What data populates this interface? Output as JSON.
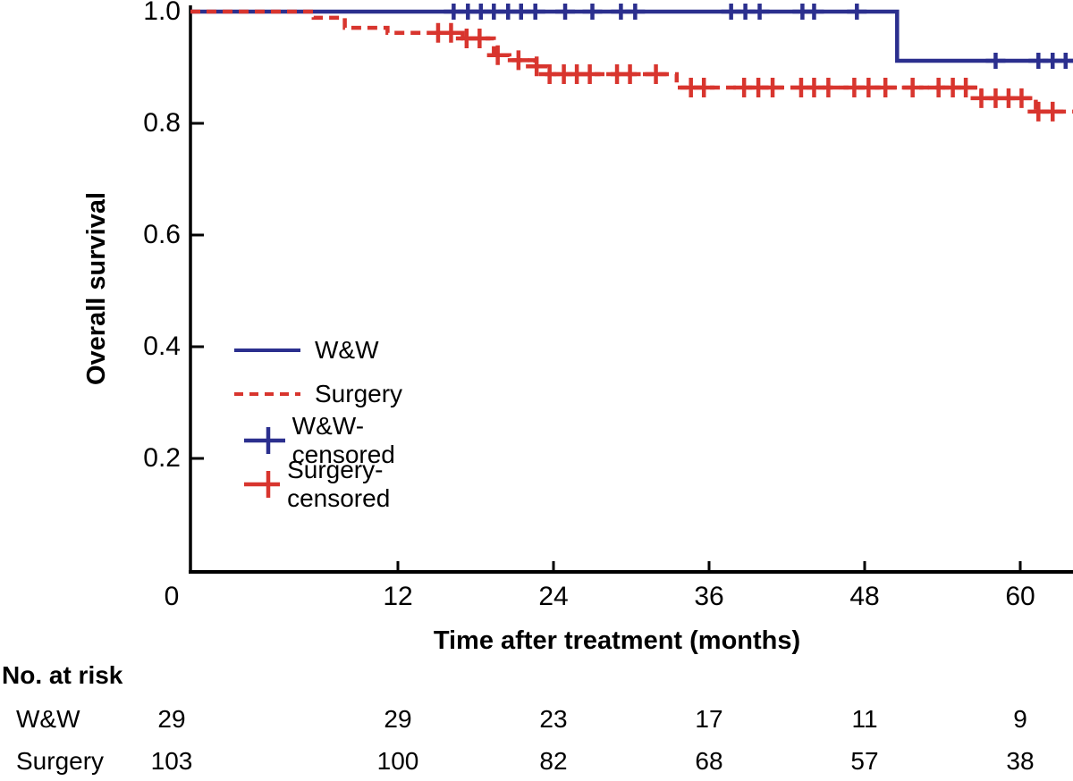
{
  "figure": {
    "colors": {
      "ww": "#2b2f8e",
      "surgery": "#d8352e",
      "axis": "#000000",
      "text": "#000000"
    }
  },
  "legend": {
    "items": [
      {
        "label": "W&W",
        "swatch": "solid-line",
        "series": "ww"
      },
      {
        "label": "Surgery",
        "swatch": "dashed-line",
        "series": "surgery"
      },
      {
        "label": "W&W-censored",
        "swatch": "plus-mark",
        "series": "ww"
      },
      {
        "label": "Surgery-censored",
        "swatch": "plus-mark",
        "series": "surgery"
      }
    ]
  },
  "chart_data": {
    "type": "line",
    "subtype": "kaplan-meier-step",
    "title": "",
    "xlabel": "Time after treatment (months)",
    "ylabel": "Overall survival",
    "xlim": [
      0,
      64
    ],
    "ylim": [
      0,
      1.0
    ],
    "x_tick_values": [
      0,
      12,
      24,
      36,
      48,
      60
    ],
    "x_tick_labels": [
      "0",
      "12",
      "24",
      "36",
      "48",
      "60"
    ],
    "y_tick_values": [
      1.0,
      0.8,
      0.6,
      0.4,
      0.2
    ],
    "y_tick_labels": [
      "1.0",
      "0.8",
      "0.6",
      "0.4",
      "0.2"
    ],
    "grid": false,
    "legend_position": "inside-left-middle",
    "series": [
      {
        "name": "W&W",
        "color": "#2b2f8e",
        "line_style": "solid",
        "steps": [
          [
            0,
            1.0
          ],
          [
            50.5,
            1.0
          ],
          [
            50.5,
            0.912
          ],
          [
            64,
            0.912
          ]
        ],
        "censored": [
          [
            16.3,
            1.0
          ],
          [
            17.4,
            1.0
          ],
          [
            18.4,
            1.0
          ],
          [
            19.4,
            1.0
          ],
          [
            20.5,
            1.0
          ],
          [
            21.5,
            1.0
          ],
          [
            22.6,
            1.0
          ],
          [
            24.9,
            1.0
          ],
          [
            27.0,
            1.0
          ],
          [
            29.2,
            1.0
          ],
          [
            30.3,
            1.0
          ],
          [
            37.7,
            1.0
          ],
          [
            38.8,
            1.0
          ],
          [
            39.9,
            1.0
          ],
          [
            43.2,
            1.0
          ],
          [
            44.1,
            1.0
          ],
          [
            47.4,
            1.0
          ],
          [
            58.1,
            0.912
          ],
          [
            61.4,
            0.912
          ],
          [
            62.5,
            0.912
          ],
          [
            63.5,
            0.912
          ]
        ]
      },
      {
        "name": "Surgery",
        "color": "#d8352e",
        "line_style": "dashed",
        "steps": [
          [
            0,
            1.0
          ],
          [
            5.5,
            1.0
          ],
          [
            5.5,
            0.989
          ],
          [
            7.9,
            0.989
          ],
          [
            7.9,
            0.971
          ],
          [
            11.2,
            0.971
          ],
          [
            11.2,
            0.962
          ],
          [
            17.0,
            0.962
          ],
          [
            17.0,
            0.952
          ],
          [
            19.4,
            0.952
          ],
          [
            19.4,
            0.922
          ],
          [
            20.6,
            0.922
          ],
          [
            20.6,
            0.913
          ],
          [
            22.6,
            0.913
          ],
          [
            22.6,
            0.902
          ],
          [
            23.5,
            0.902
          ],
          [
            23.5,
            0.888
          ],
          [
            33.5,
            0.888
          ],
          [
            33.5,
            0.864
          ],
          [
            57.0,
            0.864
          ],
          [
            57.0,
            0.845
          ],
          [
            61.2,
            0.845
          ],
          [
            61.2,
            0.821
          ],
          [
            64,
            0.821
          ]
        ],
        "censored": [
          [
            15.1,
            0.962
          ],
          [
            16.1,
            0.962
          ],
          [
            17.3,
            0.952
          ],
          [
            18.3,
            0.952
          ],
          [
            19.7,
            0.922
          ],
          [
            21.3,
            0.913
          ],
          [
            22.7,
            0.902
          ],
          [
            23.7,
            0.888
          ],
          [
            24.8,
            0.888
          ],
          [
            25.8,
            0.888
          ],
          [
            26.8,
            0.888
          ],
          [
            28.9,
            0.888
          ],
          [
            29.9,
            0.888
          ],
          [
            31.9,
            0.888
          ],
          [
            34.6,
            0.864
          ],
          [
            35.6,
            0.864
          ],
          [
            38.7,
            0.864
          ],
          [
            39.8,
            0.864
          ],
          [
            40.9,
            0.864
          ],
          [
            43.1,
            0.864
          ],
          [
            44.1,
            0.864
          ],
          [
            45.2,
            0.864
          ],
          [
            47.2,
            0.864
          ],
          [
            48.3,
            0.864
          ],
          [
            49.6,
            0.864
          ],
          [
            51.7,
            0.864
          ],
          [
            53.7,
            0.864
          ],
          [
            54.8,
            0.864
          ],
          [
            55.8,
            0.864
          ],
          [
            57.0,
            0.845
          ],
          [
            58.1,
            0.845
          ],
          [
            59.1,
            0.845
          ],
          [
            60.1,
            0.845
          ],
          [
            61.4,
            0.821
          ],
          [
            62.5,
            0.821
          ]
        ]
      }
    ],
    "risk_table": {
      "title": "No. at risk",
      "time_points": [
        0,
        12,
        24,
        36,
        48,
        60
      ],
      "rows": [
        {
          "name": "W&W",
          "counts": [
            "29",
            "29",
            "23",
            "17",
            "11",
            "9"
          ]
        },
        {
          "name": "Surgery",
          "counts": [
            "103",
            "100",
            "82",
            "68",
            "57",
            "38"
          ]
        }
      ]
    }
  }
}
